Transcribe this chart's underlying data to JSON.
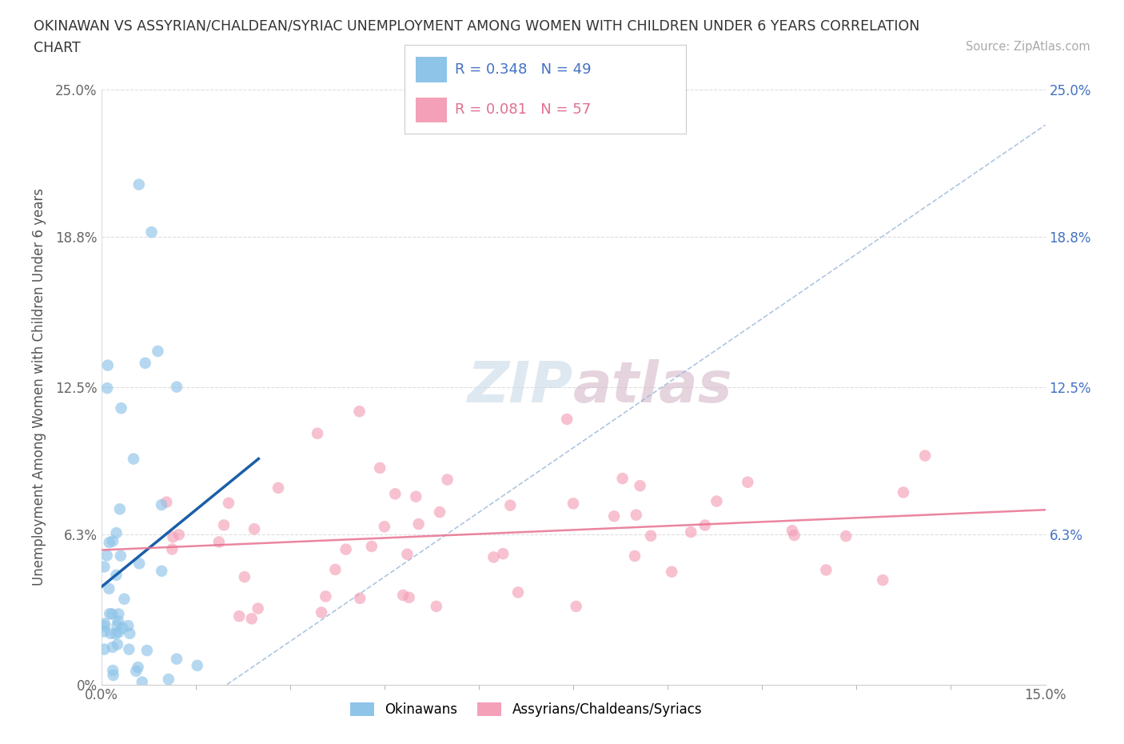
{
  "title_line1": "OKINAWAN VS ASSYRIAN/CHALDEAN/SYRIAC UNEMPLOYMENT AMONG WOMEN WITH CHILDREN UNDER 6 YEARS CORRELATION",
  "title_line2": "CHART",
  "source": "Source: ZipAtlas.com",
  "ylabel": "Unemployment Among Women with Children Under 6 years",
  "xlim": [
    0.0,
    0.15
  ],
  "ylim": [
    0.0,
    0.25
  ],
  "ytick_values": [
    0.0,
    0.063,
    0.125,
    0.188,
    0.25
  ],
  "ytick_labels": [
    "0%",
    "6.3%",
    "12.5%",
    "18.8%",
    "25.0%"
  ],
  "right_ytick_values": [
    0.063,
    0.125,
    0.188,
    0.25
  ],
  "right_ytick_labels": [
    "6.3%",
    "12.5%",
    "18.8%",
    "25.0%"
  ],
  "legend_label1": "Okinawans",
  "legend_label2": "Assyrians/Chaldeans/Syriacs",
  "r1": 0.348,
  "n1": 49,
  "r2": 0.081,
  "n2": 57,
  "color_blue": "#8ec4e8",
  "color_pink": "#f4a0b8",
  "color_blue_line": "#1a5fa8",
  "color_pink_line": "#e87090",
  "color_diag": "#9ab8d8",
  "color_blue_text": "#4472c4",
  "color_pink_text": "#e07090",
  "watermark_color": "#c8dae8",
  "watermark_color2": "#d4b8c8"
}
